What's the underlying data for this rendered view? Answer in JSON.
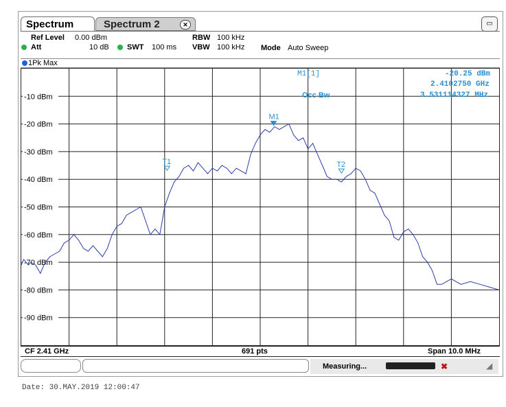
{
  "tabs": [
    {
      "label": "Spectrum"
    },
    {
      "label": "Spectrum 2"
    }
  ],
  "tab_close_icon": "close-icon",
  "settings": {
    "ref_level_label": "Ref Level",
    "ref_level_value": "0.00 dBm",
    "att_label": "Att",
    "att_value": "10 dB",
    "swt_label": "SWT",
    "swt_value": "100 ms",
    "rbw_label": "RBW",
    "rbw_value": "100 kHz",
    "vbw_label": "VBW",
    "vbw_value": "100 kHz",
    "mode_label": "Mode",
    "mode_value": "Auto Sweep"
  },
  "trace_label": "1Pk Max",
  "marker_info": {
    "name": "M1[1]",
    "level": "-20.25 dBm",
    "freq": "2.4102750 GHz",
    "occ_label": "Occ Bw",
    "occ_value": "3.531114327 MHz"
  },
  "footer": {
    "cf": "CF 2.41 GHz",
    "pts": "691 pts",
    "span": "Span 10.0 MHz"
  },
  "status": {
    "measuring": "Measuring..."
  },
  "date_line": "Date: 30.MAY.2019  12:00:47",
  "chart_data": {
    "type": "line",
    "xlim": [
      2405.0,
      2415.0
    ],
    "x_unit": "MHz",
    "ylim": [
      -100,
      0
    ],
    "y_unit": "dBm",
    "y_ticks": [
      {
        "value": -10,
        "label": "-10 dBm"
      },
      {
        "value": -20,
        "label": "-20 dBm"
      },
      {
        "value": -30,
        "label": "-30 dBm"
      },
      {
        "value": -40,
        "label": "-40 dBm"
      },
      {
        "value": -50,
        "label": "-50 dBm"
      },
      {
        "value": -60,
        "label": "-60 dBm"
      },
      {
        "value": -70,
        "label": "-70 dBm"
      },
      {
        "value": -80,
        "label": "-80 dBm"
      },
      {
        "value": -90,
        "label": "-90 dBm"
      }
    ],
    "grid": true,
    "colors": {
      "trace": "#2a3ca8",
      "marker": "#2a8fd0"
    },
    "series": [
      {
        "x": [
          2405.0,
          2405.05,
          2405.1,
          2405.15,
          2405.2,
          2405.3,
          2405.4,
          2405.5,
          2405.6,
          2405.7,
          2405.8,
          2405.9,
          2406.0,
          2406.1,
          2406.2,
          2406.3,
          2406.4,
          2406.5,
          2406.6,
          2406.7,
          2406.8,
          2406.9,
          2407.0,
          2407.1,
          2407.2,
          2407.3,
          2407.4,
          2407.5,
          2407.6,
          2407.7,
          2407.8,
          2407.9,
          2408.0,
          2408.1,
          2408.2,
          2408.3,
          2408.4,
          2408.5,
          2408.6,
          2408.7,
          2408.8,
          2408.9,
          2409.0,
          2409.1,
          2409.2,
          2409.3,
          2409.4,
          2409.5,
          2409.6,
          2409.7,
          2409.8,
          2409.9,
          2410.0,
          2410.1,
          2410.2,
          2410.3,
          2410.4,
          2410.5,
          2410.6,
          2410.7,
          2410.8,
          2410.9,
          2411.0,
          2411.1,
          2411.2,
          2411.3,
          2411.4,
          2411.5,
          2411.6,
          2411.7,
          2411.8,
          2411.9,
          2412.0,
          2412.1,
          2412.2,
          2412.3,
          2412.4,
          2412.5,
          2412.6,
          2412.7,
          2412.8,
          2412.9,
          2413.0,
          2413.1,
          2413.2,
          2413.3,
          2413.4,
          2413.5,
          2413.6,
          2413.7,
          2413.8,
          2413.9,
          2414.0,
          2414.2,
          2414.4,
          2414.6,
          2414.8,
          2415.0
        ],
        "y": [
          -71,
          -69,
          -70,
          -71,
          -70,
          -71,
          -74,
          -70,
          -68,
          -67,
          -66,
          -63,
          -62,
          -60,
          -62,
          -65,
          -66,
          -64,
          -66,
          -68,
          -65,
          -60,
          -57,
          -56,
          -53,
          -52,
          -51,
          -50,
          -55,
          -60,
          -58,
          -60,
          -50,
          -45,
          -41,
          -39,
          -36,
          -35,
          -37,
          -34,
          -36,
          -38,
          -36,
          -37,
          -35,
          -36,
          -38,
          -36,
          -37,
          -38,
          -31,
          -27,
          -24,
          -22,
          -23,
          -21,
          -22,
          -21,
          -20,
          -24,
          -26,
          -25,
          -29,
          -27,
          -31,
          -35,
          -39,
          -40,
          -40,
          -41,
          -39,
          -38,
          -36,
          -37,
          -40,
          -44,
          -45,
          -49,
          -53,
          -55,
          -61,
          -62,
          -59,
          -58,
          -60,
          -63,
          -68,
          -70,
          -73,
          -78,
          -78,
          -77,
          -76,
          -78,
          -77,
          -78,
          -79,
          -80
        ]
      }
    ],
    "markers": [
      {
        "label": "M1",
        "x": 2410.28,
        "y": -20.25
      },
      {
        "label": "T1",
        "x": 2408.05,
        "y": -36.5
      },
      {
        "label": "T2",
        "x": 2411.7,
        "y": -37.5
      }
    ]
  }
}
